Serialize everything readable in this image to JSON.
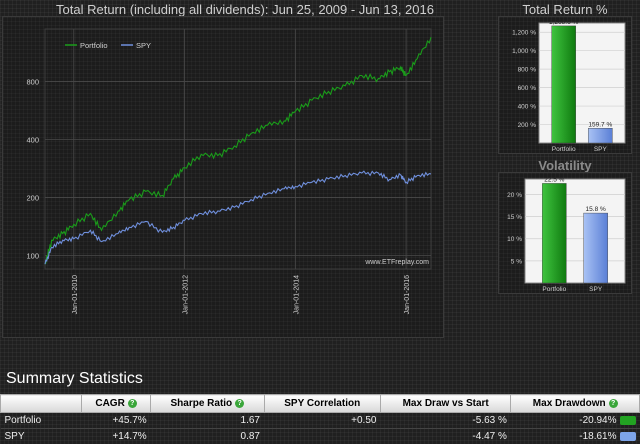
{
  "main_title": "Total Return (including all dividends): Jun 25, 2009 - Jun 13, 2016",
  "right_title": "Total Return %",
  "volatility_title": "Volatility",
  "watermark": "www.ETFreplay.com",
  "summary": {
    "title": "Summary Statistics",
    "columns": [
      "",
      "CAGR",
      "Sharpe Ratio",
      "SPY Correlation",
      "Max Draw vs Start",
      "Max Drawdown"
    ],
    "rows": [
      {
        "name": "Portfolio",
        "cagr": "+45.7%",
        "sharpe": "1.67",
        "corr": "+0.50",
        "maxdraw_start": "-5.63 %",
        "maxdd": "-20.94%",
        "dd_color": "#22a322"
      },
      {
        "name": "SPY",
        "cagr": "+14.7%",
        "sharpe": "0.87",
        "corr": "",
        "maxdraw_start": "-4.47 %",
        "maxdd": "-18.61%",
        "dd_color": "#7da4e8"
      }
    ]
  },
  "colors": {
    "portfolio": "#1a9c1a",
    "spy": "#6f8fdc"
  },
  "chart_data": [
    {
      "type": "line",
      "title": "Total Return (including all dividends): Jun 25, 2009 - Jun 13, 2016",
      "x_ticks": [
        "Jan-01-2010",
        "Jan-01-2012",
        "Jan-01-2014",
        "Jan-01-2016"
      ],
      "y_ticks": [
        100,
        200,
        400,
        800
      ],
      "y_scale": "log",
      "ylim": [
        85,
        1500
      ],
      "xlim": [
        2009.48,
        2016.45
      ],
      "grid": true,
      "legend": "top-left",
      "series": [
        {
          "name": "Portfolio",
          "x": [
            2009.48,
            2009.6,
            2009.8,
            2010.0,
            2010.3,
            2010.5,
            2010.8,
            2011.0,
            2011.3,
            2011.6,
            2011.8,
            2012.0,
            2012.3,
            2012.6,
            2012.9,
            2013.2,
            2013.5,
            2013.8,
            2014.0,
            2014.3,
            2014.6,
            2014.9,
            2015.2,
            2015.5,
            2015.7,
            2015.9,
            2016.0,
            2016.2,
            2016.45
          ],
          "values": [
            90,
            120,
            130,
            145,
            165,
            135,
            170,
            195,
            215,
            205,
            250,
            285,
            335,
            330,
            370,
            430,
            475,
            500,
            560,
            640,
            710,
            760,
            860,
            830,
            900,
            950,
            860,
            1050,
            1360
          ]
        },
        {
          "name": "SPY",
          "x": [
            2009.48,
            2009.6,
            2009.8,
            2010.0,
            2010.3,
            2010.5,
            2010.8,
            2011.0,
            2011.3,
            2011.6,
            2011.8,
            2012.0,
            2012.3,
            2012.6,
            2012.9,
            2013.2,
            2013.5,
            2013.8,
            2014.0,
            2014.3,
            2014.6,
            2014.9,
            2015.2,
            2015.5,
            2015.7,
            2015.9,
            2016.0,
            2016.2,
            2016.45
          ],
          "values": [
            90,
            110,
            120,
            122,
            135,
            118,
            130,
            140,
            150,
            132,
            140,
            152,
            165,
            170,
            178,
            195,
            210,
            222,
            228,
            240,
            250,
            260,
            268,
            268,
            248,
            262,
            240,
            260,
            265
          ]
        }
      ]
    },
    {
      "type": "bar",
      "title": "Total Return %",
      "categories": [
        "Portfolio",
        "SPY"
      ],
      "values": [
        1268.6,
        159.7
      ],
      "data_labels": [
        "1,268.6 %",
        "159.7 %"
      ],
      "y_ticks": [
        "200 %",
        "400 %",
        "600 %",
        "800 %",
        "1,000 %",
        "1,200 %"
      ],
      "ylim": [
        0,
        1300
      ]
    },
    {
      "type": "bar",
      "title": "Volatility",
      "categories": [
        "Portfolio",
        "SPY"
      ],
      "values": [
        22.5,
        15.8
      ],
      "data_labels": [
        "22.5 %",
        "15.8 %"
      ],
      "y_ticks": [
        "5 %",
        "10 %",
        "15 %",
        "20 %"
      ],
      "ylim": [
        0,
        23.5
      ]
    }
  ]
}
